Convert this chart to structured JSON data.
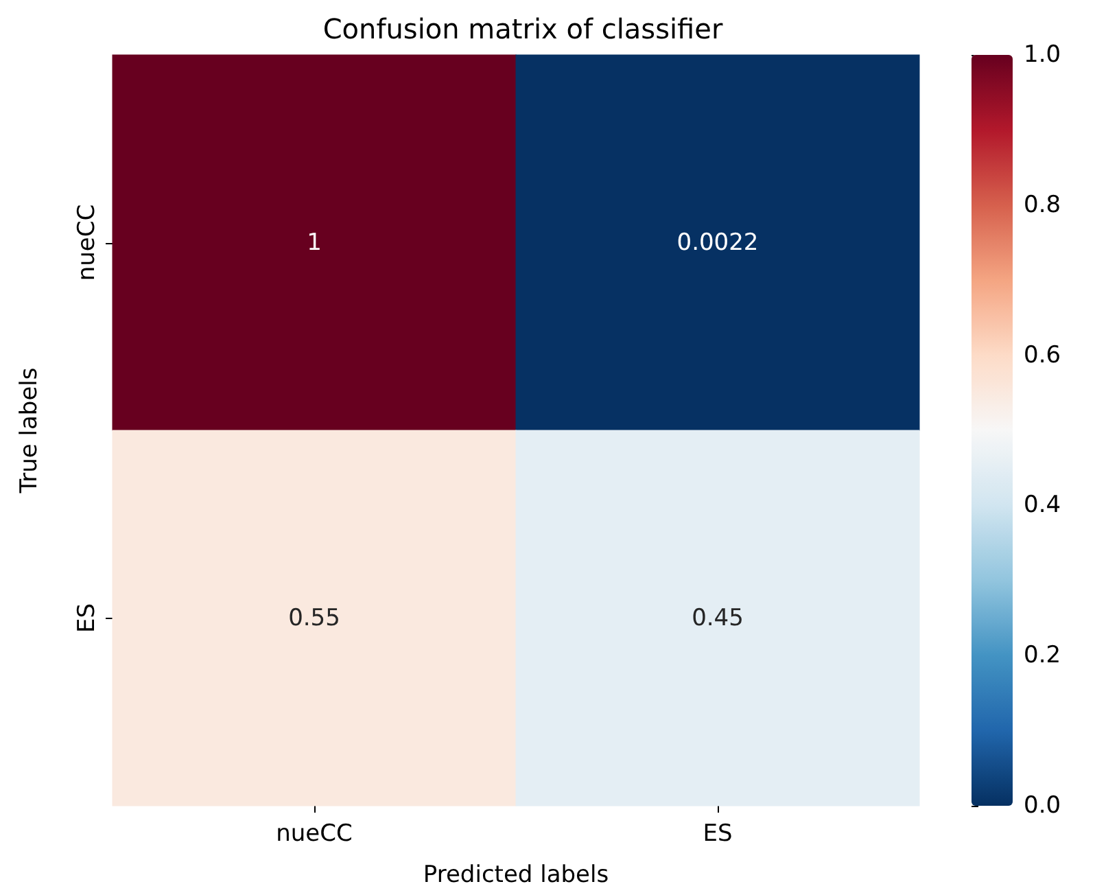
{
  "chart_data": {
    "type": "heatmap",
    "title": "Confusion matrix of classifier",
    "xlabel": "Predicted labels",
    "ylabel": "True labels",
    "categories": [
      "nueCC",
      "ES"
    ],
    "y_categories": [
      "nueCC",
      "ES"
    ],
    "cells": [
      [
        1,
        0.0022
      ],
      [
        0.55,
        0.45
      ]
    ],
    "data_labels": true,
    "clim": [
      0,
      1
    ],
    "cticks": [
      {
        "value": 0,
        "label": "0.0"
      },
      0.2,
      0.4,
      0.6,
      0.8,
      {
        "value": 1,
        "label": "1.0"
      }
    ]
  }
}
